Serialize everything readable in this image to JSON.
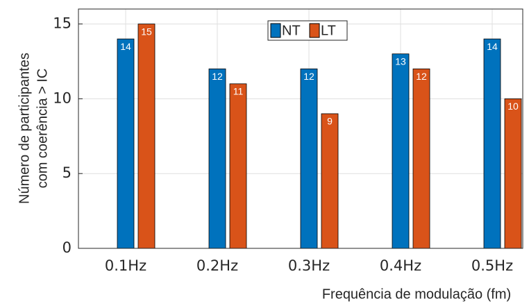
{
  "chart_data": {
    "type": "bar",
    "ylabel": [
      "Número de participantes",
      "com coerência > IC"
    ],
    "xlabel": "Frequência de modulação (fm)",
    "categories": [
      "0.1Hz",
      "0.2Hz",
      "0.3Hz",
      "0.4Hz",
      "0.5Hz"
    ],
    "series": [
      {
        "color": "#0072bd",
        "values": [
          0,
          0,
          0,
          0,
          0
        ]
      },
      {
        "name": "NT",
        "color": "#0072bd",
        "values": [
          14,
          12,
          12,
          13,
          14
        ]
      },
      {
        "name": "LT",
        "color": "#d95319",
        "values": [
          15,
          11,
          9,
          12,
          10
        ]
      }
    ],
    "ylim": [
      0,
      16
    ],
    "yticks": [
      0,
      5,
      10,
      15
    ],
    "grid": true,
    "legend": "top"
  }
}
